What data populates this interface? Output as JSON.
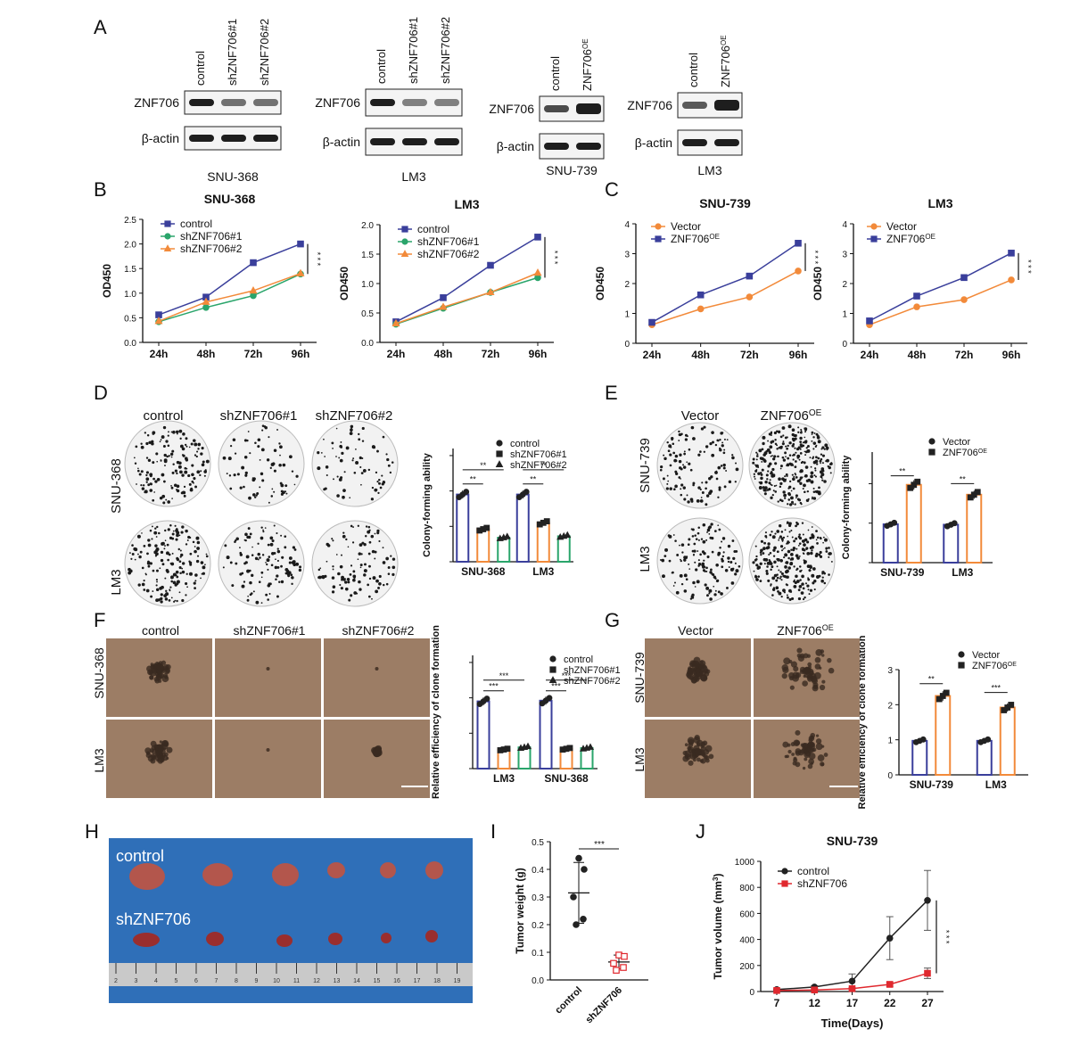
{
  "panel_labels": [
    "A",
    "B",
    "C",
    "D",
    "E",
    "F",
    "G",
    "H",
    "I",
    "J"
  ],
  "colors": {
    "control": "#3a3f9b",
    "sh1": "#2aa56b",
    "sh2": "#f28a3a",
    "vector": "#f28a3a",
    "oe": "#3a3f9b",
    "red": "#e0282e",
    "black": "#222222",
    "plate_bg": "#9a7a62",
    "tumor_bg": "#2f6fb8"
  },
  "westerns": [
    {
      "lanes": [
        "control",
        "shZNF706#1",
        "shZNF706#2"
      ],
      "rows": [
        "ZNF706",
        "β-actin"
      ],
      "cell": "SNU-368"
    },
    {
      "lanes": [
        "control",
        "shZNF706#1",
        "shZNF706#2"
      ],
      "rows": [
        "ZNF706",
        "β-actin"
      ],
      "cell": "LM3"
    },
    {
      "lanes": [
        "control",
        "ZNF706OE"
      ],
      "rows": [
        "ZNF706",
        "β-actin"
      ],
      "cell": "SNU-739"
    },
    {
      "lanes": [
        "control",
        "ZNF706OE"
      ],
      "rows": [
        "ZNF706",
        "β-actin"
      ],
      "cell": "LM3"
    }
  ],
  "oe_sup": "OE",
  "D": {
    "cols": [
      "control",
      "shZNF706#1",
      "shZNF706#2"
    ],
    "rows": [
      "SNU-368",
      "LM3"
    ]
  },
  "E": {
    "cols": [
      "Vector",
      "ZNF706"
    ],
    "rows": [
      "SNU-739",
      "LM3"
    ]
  },
  "F": {
    "cols": [
      "control",
      "shZNF706#1",
      "shZNF706#2"
    ],
    "rows": [
      "SNU-368",
      "LM3"
    ]
  },
  "G": {
    "cols": [
      "Vector",
      "ZNF706"
    ],
    "rows": [
      "SNU-739",
      "LM3"
    ]
  },
  "H": {
    "labels": [
      "control",
      "shZNF706"
    ],
    "ruler_ticks": [
      "2",
      "3",
      "4",
      "5",
      "6",
      "7",
      "8",
      "9",
      "10",
      "11",
      "12",
      "13",
      "14",
      "15",
      "16",
      "17",
      "18",
      "19"
    ]
  },
  "chart_data": [
    {
      "id": "B1",
      "type": "line",
      "title": "SNU-368",
      "ylabel": "OD450",
      "x": [
        "24h",
        "48h",
        "72h",
        "96h"
      ],
      "ylim": [
        0,
        2.5
      ],
      "yticks": [
        "0.0",
        "0.5",
        "1.0",
        "1.5",
        "2.0",
        "2.5"
      ],
      "series": [
        {
          "name": "control",
          "values": [
            0.56,
            0.92,
            1.62,
            2.0
          ],
          "color": "#3a3f9b",
          "marker": "square"
        },
        {
          "name": "shZNF706#1",
          "values": [
            0.42,
            0.71,
            0.95,
            1.39
          ],
          "color": "#2aa56b",
          "marker": "circle"
        },
        {
          "name": "shZNF706#2",
          "values": [
            0.43,
            0.82,
            1.05,
            1.4
          ],
          "color": "#f28a3a",
          "marker": "triangle"
        }
      ],
      "sig": "* * *"
    },
    {
      "id": "B2",
      "type": "line",
      "title": "LM3",
      "ylabel": "OD450",
      "x": [
        "24h",
        "48h",
        "72h",
        "96h"
      ],
      "ylim": [
        0,
        2.0
      ],
      "yticks": [
        "0.0",
        "0.5",
        "1.0",
        "1.5",
        "2.0"
      ],
      "series": [
        {
          "name": "control",
          "values": [
            0.35,
            0.76,
            1.31,
            1.79
          ],
          "color": "#3a3f9b",
          "marker": "square"
        },
        {
          "name": "shZNF706#1",
          "values": [
            0.31,
            0.58,
            0.85,
            1.1
          ],
          "color": "#2aa56b",
          "marker": "circle"
        },
        {
          "name": "shZNF706#2",
          "values": [
            0.32,
            0.6,
            0.85,
            1.18
          ],
          "color": "#f28a3a",
          "marker": "triangle"
        }
      ],
      "sig": "* * *"
    },
    {
      "id": "C1",
      "type": "line",
      "title": "SNU-739",
      "ylabel": "OD450",
      "x": [
        "24h",
        "48h",
        "72h",
        "96h"
      ],
      "ylim": [
        0,
        4
      ],
      "yticks": [
        "0",
        "1",
        "2",
        "3",
        "4"
      ],
      "series": [
        {
          "name": "Vector",
          "values": [
            0.62,
            1.15,
            1.55,
            2.42
          ],
          "color": "#f28a3a",
          "marker": "circle"
        },
        {
          "name": "ZNF706",
          "values": [
            0.7,
            1.62,
            2.25,
            3.35
          ],
          "color": "#3a3f9b",
          "marker": "square",
          "sup": "OE"
        }
      ],
      "sig": "* * *"
    },
    {
      "id": "C2",
      "type": "line",
      "title": "LM3",
      "ylabel": "OD450",
      "x": [
        "24h",
        "48h",
        "72h",
        "96h"
      ],
      "ylim": [
        0,
        4
      ],
      "yticks": [
        "0",
        "1",
        "2",
        "3",
        "4"
      ],
      "series": [
        {
          "name": "Vector",
          "values": [
            0.62,
            1.22,
            1.46,
            2.12
          ],
          "color": "#f28a3a",
          "marker": "circle"
        },
        {
          "name": "ZNF706",
          "values": [
            0.75,
            1.58,
            2.2,
            3.02
          ],
          "color": "#3a3f9b",
          "marker": "square",
          "sup": "OE"
        }
      ],
      "sig": "* * *"
    },
    {
      "id": "D",
      "type": "bar",
      "ylabel": "Colony-forming ability",
      "categories": [
        "SNU-368",
        "LM3"
      ],
      "ylim": [
        0,
        1.6
      ],
      "series": [
        {
          "name": "control",
          "values": [
            0.95,
            0.95
          ],
          "color": "#3a3f9b",
          "marker": "circle"
        },
        {
          "name": "shZNF706#1",
          "values": [
            0.46,
            0.55
          ],
          "color": "#f28a3a",
          "marker": "square"
        },
        {
          "name": "shZNF706#2",
          "values": [
            0.34,
            0.36
          ],
          "color": "#2aa56b",
          "marker": "triangle"
        }
      ],
      "sig": [
        "**",
        "**",
        "**",
        "**"
      ]
    },
    {
      "id": "E",
      "type": "bar",
      "ylabel": "Colony-forming ability",
      "categories": [
        "SNU-739",
        "LM3"
      ],
      "ylim": [
        0,
        2.8
      ],
      "series": [
        {
          "name": "Vector",
          "values": [
            0.97,
            0.96
          ],
          "color": "#3a3f9b",
          "marker": "circle"
        },
        {
          "name": "ZNF706",
          "values": [
            1.97,
            1.72
          ],
          "color": "#f28a3a",
          "marker": "square",
          "sup": "OE"
        }
      ],
      "sig": [
        "**",
        "**"
      ]
    },
    {
      "id": "F",
      "type": "bar",
      "ylabel": "Relative efficiency of clone formation",
      "categories": [
        "LM3",
        "SNU-368"
      ],
      "ylim": [
        0,
        1.6
      ],
      "series": [
        {
          "name": "control",
          "values": [
            0.95,
            0.96
          ],
          "color": "#3a3f9b",
          "marker": "circle"
        },
        {
          "name": "shZNF706#1",
          "values": [
            0.27,
            0.28
          ],
          "color": "#f28a3a",
          "marker": "square"
        },
        {
          "name": "shZNF706#2",
          "values": [
            0.3,
            0.29
          ],
          "color": "#2aa56b",
          "marker": "triangle"
        }
      ],
      "sig": [
        "***",
        "***",
        "***",
        "***"
      ]
    },
    {
      "id": "G",
      "type": "bar",
      "ylabel": "Relative efficiency of clone formation",
      "categories": [
        "SNU-739",
        "LM3"
      ],
      "ylim": [
        0,
        3
      ],
      "yticks": [
        "0",
        "1",
        "2",
        "3"
      ],
      "series": [
        {
          "name": "Vector",
          "values": [
            0.97,
            0.97
          ],
          "color": "#3a3f9b",
          "marker": "circle"
        },
        {
          "name": "ZNF706",
          "values": [
            2.25,
            1.92
          ],
          "color": "#f28a3a",
          "marker": "square",
          "sup": "OE"
        }
      ],
      "sig": [
        "**",
        "***"
      ]
    },
    {
      "id": "I",
      "type": "scatter",
      "ylabel": "Tumor weight (g)",
      "categories": [
        "control",
        "shZNF706"
      ],
      "ylim": [
        0,
        0.5
      ],
      "yticks": [
        "0.0",
        "0.1",
        "0.2",
        "0.3",
        "0.4",
        "0.5"
      ],
      "groups": [
        {
          "name": "control",
          "values": [
            0.44,
            0.4,
            0.3,
            0.22,
            0.2
          ],
          "mean": 0.315,
          "sd": 0.11,
          "color": "#222222",
          "marker": "circle"
        },
        {
          "name": "shZNF706",
          "values": [
            0.09,
            0.085,
            0.06,
            0.045,
            0.035
          ],
          "mean": 0.065,
          "sd": 0.025,
          "color": "#e0282e",
          "marker": "square"
        }
      ],
      "sig": "***"
    },
    {
      "id": "J",
      "type": "line",
      "title": "SNU-739",
      "ylabel": "Tumor volume (mm",
      "ylabel_sup": "3",
      "ylabel_close": ")",
      "xlabel": "Time(Days)",
      "x": [
        "7",
        "12",
        "17",
        "22",
        "27"
      ],
      "ylim": [
        0,
        1000
      ],
      "yticks": [
        "0",
        "200",
        "400",
        "600",
        "800",
        "1000"
      ],
      "series": [
        {
          "name": "control",
          "values": [
            15,
            35,
            80,
            410,
            700
          ],
          "err": [
            5,
            10,
            55,
            165,
            230
          ],
          "color": "#222222",
          "marker": "circle"
        },
        {
          "name": "shZNF706",
          "values": [
            8,
            12,
            22,
            55,
            140
          ],
          "err": [
            3,
            5,
            8,
            15,
            40
          ],
          "color": "#e0282e",
          "marker": "square"
        }
      ],
      "sig": "* * *"
    }
  ]
}
